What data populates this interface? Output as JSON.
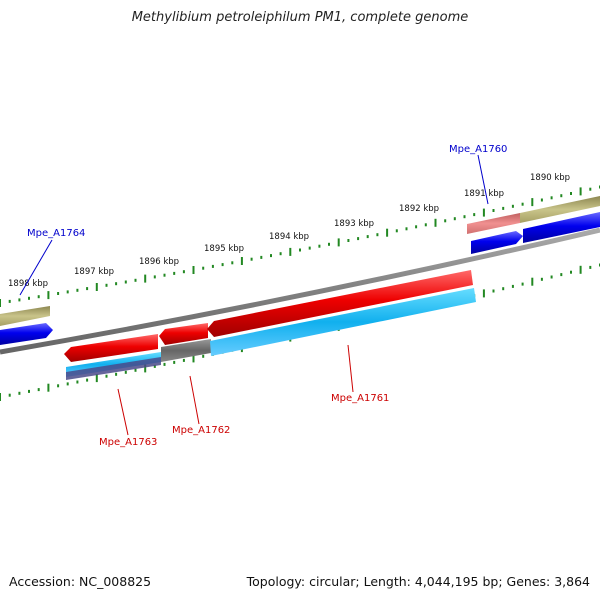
{
  "title": "Methylibium petroleiphilum PM1, complete genome",
  "accession": "Accession: NC_008825",
  "summary": "Topology: circular; Length: 4,044,195 bp; Genes: 3,864",
  "ticks": [
    "1898 kbp",
    "1897 kbp",
    "1896 kbp",
    "1895 kbp",
    "1894 kbp",
    "1893 kbp",
    "1892 kbp",
    "1891 kbp",
    "1890 kbp"
  ],
  "genes": {
    "mpe_a1764": "Mpe_A1764",
    "mpe_a1760": "Mpe_A1760",
    "mpe_a1763": "Mpe_A1763",
    "mpe_a1762": "Mpe_A1762",
    "mpe_a1761": "Mpe_A1761"
  },
  "colors": {
    "forward_label": "#0000cc",
    "reverse_label": "#cc0000",
    "cds_forward": "#0000ee",
    "cds_reverse": "#ee0000",
    "gene_olive": "#b5b070",
    "gene_pink": "#e88080",
    "gene_cyan": "#22bbee",
    "gene_gray": "#707070",
    "backbone": "#808080",
    "tick": "#228822"
  }
}
